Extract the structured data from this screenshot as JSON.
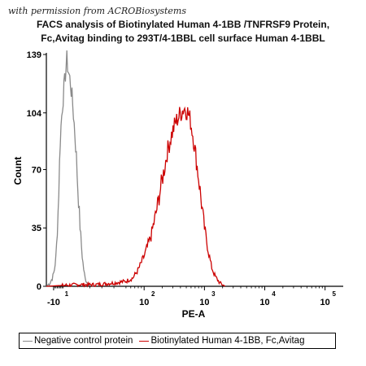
{
  "permission_note": "with permission from ACROBiosystems",
  "chart_data": {
    "type": "area",
    "title_line1": "FACS analysis of Biotinylated Human 4-1BB /TNFRSF9 Protein,",
    "title_line2": "Fc,Avitag binding to 293T/4-1BBL cell surface Human 4-1BBL",
    "xlabel": "PE-A",
    "ylabel": "Count",
    "ylim": [
      0,
      139
    ],
    "yticks": [
      "0",
      "35",
      "70",
      "104",
      "139"
    ],
    "xticks": [
      {
        "base": "-10",
        "exp": "1"
      },
      {
        "base": "10",
        "exp": "2"
      },
      {
        "base": "10",
        "exp": "3"
      },
      {
        "base": "10",
        "exp": "4"
      },
      {
        "base": "10",
        "exp": "5"
      }
    ],
    "x_scale": "biexponential",
    "grid": false,
    "legend_position": "bottom",
    "series": [
      {
        "name": "Negative control protein",
        "color": "#8a8a8a",
        "x": [
          -16,
          -13,
          -11,
          -9.5,
          -8,
          -7,
          -6,
          -5.2,
          -4.5,
          -3.5,
          -2.5,
          -1.5,
          -0.5,
          0,
          1,
          2,
          3,
          4,
          5,
          6,
          7,
          8,
          9,
          10,
          11,
          12,
          13,
          14,
          15,
          16,
          18,
          20,
          23
        ],
        "y": [
          0,
          2,
          5,
          9,
          18,
          32,
          50,
          70,
          88,
          100,
          110,
          118,
          124,
          130,
          136,
          130,
          126,
          122,
          115,
          108,
          98,
          88,
          76,
          60,
          48,
          35,
          25,
          16,
          10,
          5,
          2,
          1,
          0
        ]
      },
      {
        "name": "Biotinylated Human 4-1BB, Fc,Avitag",
        "color": "#cc0000",
        "x": [
          -16,
          10,
          25,
          40,
          50,
          65,
          80,
          100,
          130,
          160,
          190,
          220,
          240,
          280,
          330,
          390,
          460,
          520,
          580,
          650,
          720,
          800,
          880,
          1000,
          1150,
          1300,
          1500,
          1800,
          2200
        ],
        "y": [
          0,
          1,
          1,
          2,
          3,
          5,
          10,
          18,
          30,
          45,
          60,
          72,
          80,
          90,
          98,
          103,
          107,
          105,
          100,
          90,
          78,
          65,
          52,
          35,
          22,
          12,
          6,
          2,
          0
        ]
      }
    ]
  }
}
